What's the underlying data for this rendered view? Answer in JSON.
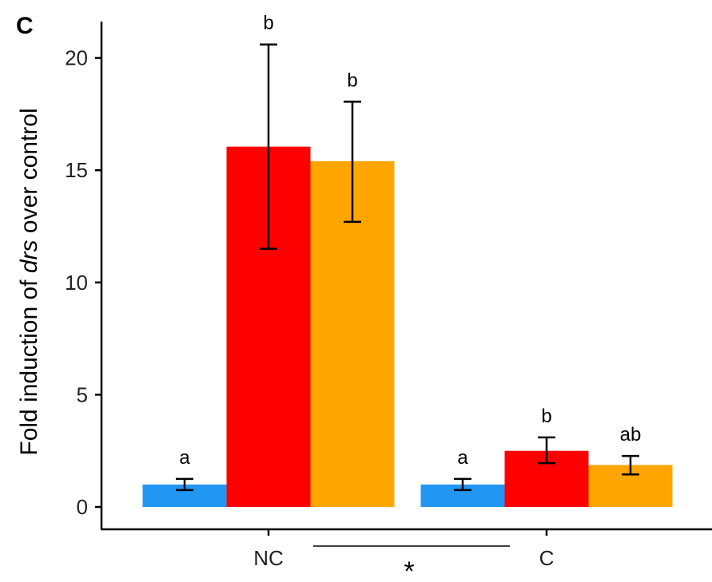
{
  "chart_data": {
    "type": "bar",
    "panel_label": "C",
    "ylabel": {
      "before": "Fold induction of ",
      "italic": "drs",
      "after": " over control"
    },
    "xlabel": "",
    "ylim": [
      0,
      22
    ],
    "yticks": [
      0,
      5,
      10,
      15,
      20
    ],
    "categories": [
      "NC",
      "C"
    ],
    "series": [
      {
        "color": "#2196f3",
        "values": [
          1.0,
          1.0
        ],
        "error_low": [
          0.75,
          0.75
        ],
        "error_high": [
          1.25,
          1.25
        ],
        "letters": [
          "a",
          "a"
        ]
      },
      {
        "color": "#ff0000",
        "values": [
          16.05,
          2.5
        ],
        "error_low": [
          11.5,
          1.95
        ],
        "error_high": [
          20.6,
          3.1
        ],
        "letters": [
          "b",
          "b"
        ]
      },
      {
        "color": "#ffa500",
        "values": [
          15.4,
          1.87
        ],
        "error_low": [
          12.7,
          1.45
        ],
        "error_high": [
          18.05,
          2.27
        ],
        "letters": [
          "b",
          "ab"
        ]
      }
    ],
    "significance": {
      "label": "*",
      "between": [
        "NC",
        "C"
      ]
    },
    "grid": false,
    "legend": "none"
  }
}
